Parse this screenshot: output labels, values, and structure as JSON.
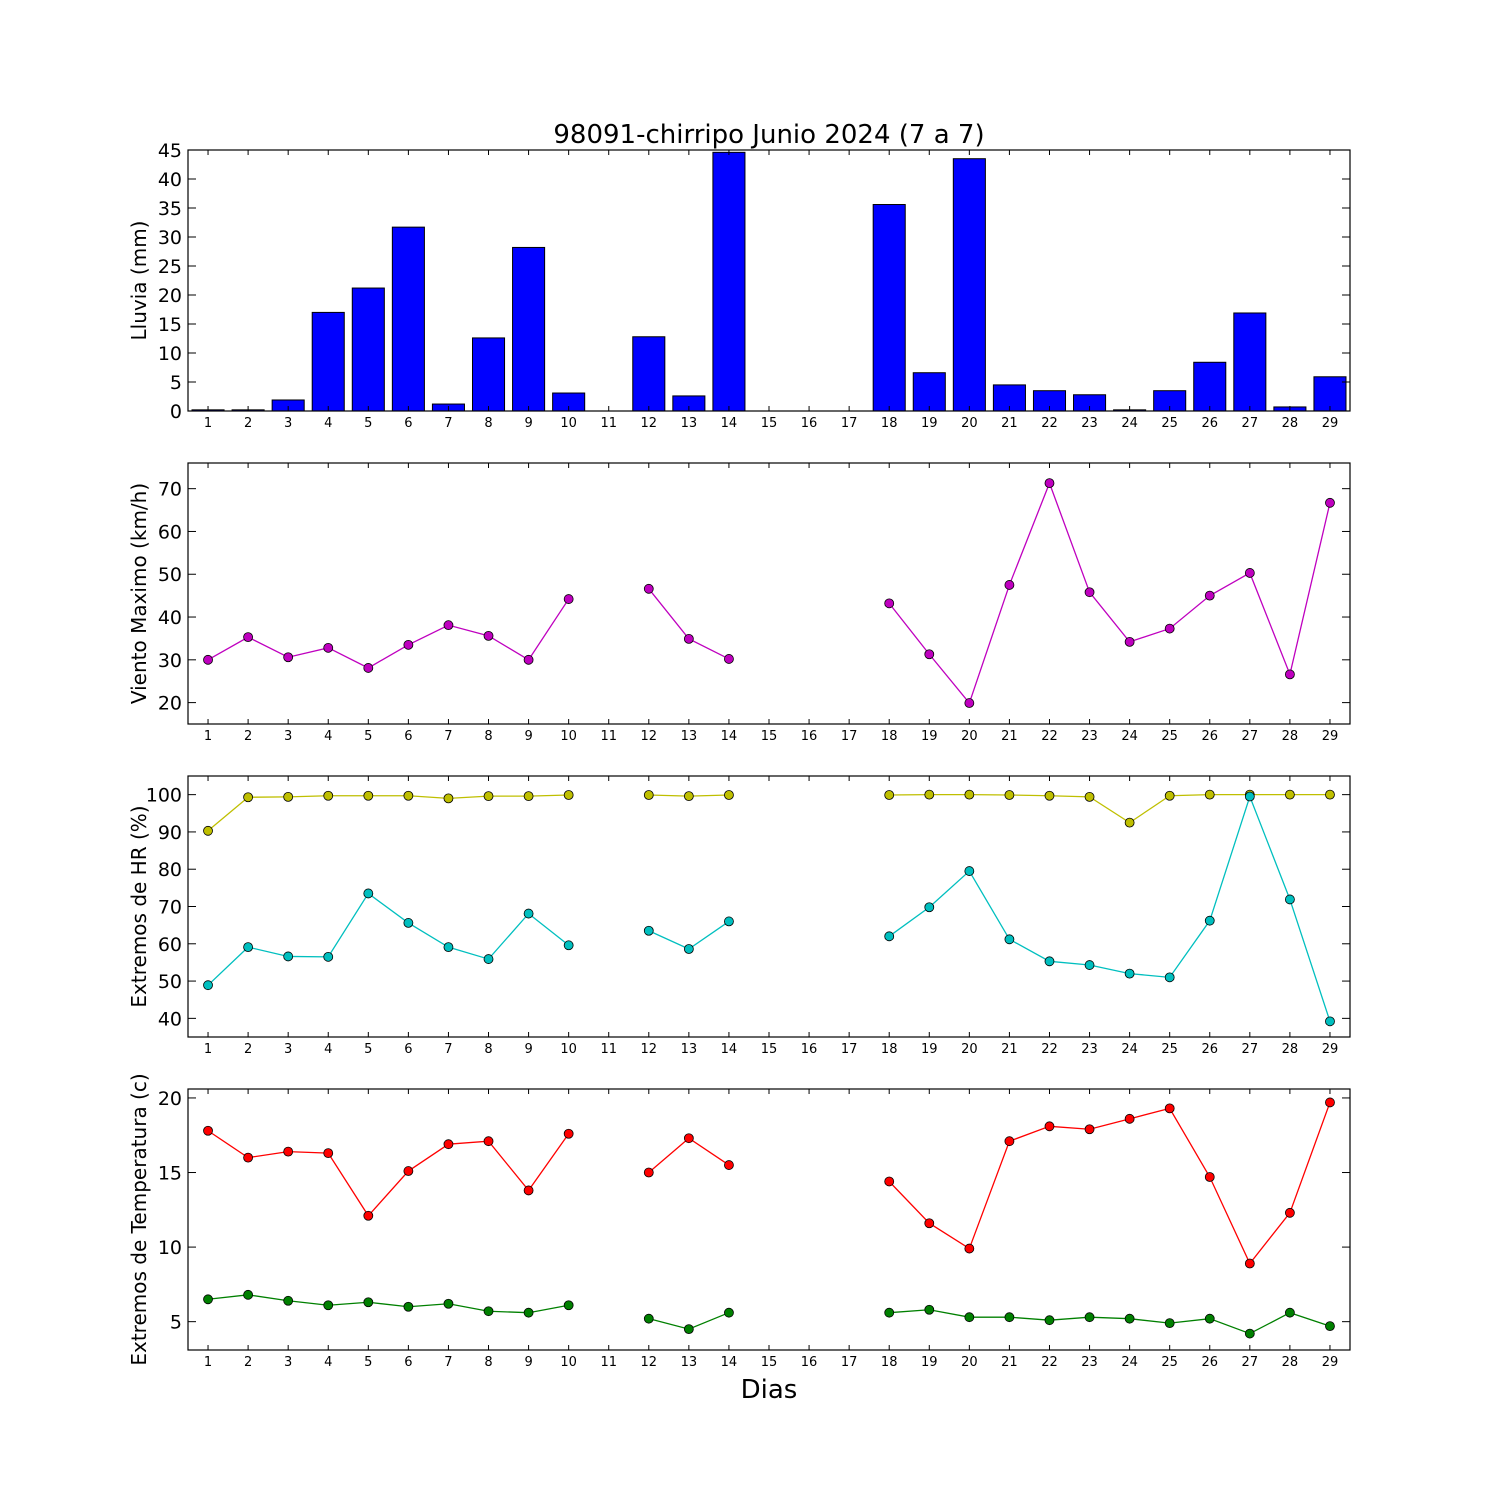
{
  "title": "98091-chirripo Junio 2024  (7 a 7)",
  "xlabel": "Dias",
  "chart_data": [
    {
      "type": "bar",
      "title": "98091-chirripo Junio 2024  (7 a 7)",
      "xlabel": "",
      "ylabel": "Lluvia (mm)",
      "ylim": [
        0,
        45
      ],
      "yticks": [
        0,
        5,
        10,
        15,
        20,
        25,
        30,
        35,
        40,
        45
      ],
      "x": [
        1,
        2,
        3,
        4,
        5,
        6,
        7,
        8,
        9,
        10,
        11,
        12,
        13,
        14,
        15,
        16,
        17,
        18,
        19,
        20,
        21,
        22,
        23,
        24,
        25,
        26,
        27,
        28,
        29
      ],
      "series": [
        {
          "color": "#0000ff",
          "values": [
            0.2,
            0.2,
            1.9,
            17.0,
            21.2,
            31.7,
            1.2,
            12.6,
            28.2,
            3.1,
            null,
            12.8,
            2.6,
            44.6,
            null,
            null,
            null,
            35.6,
            6.6,
            43.5,
            4.5,
            3.5,
            2.8,
            0.2,
            3.5,
            8.4,
            16.9,
            0.7,
            5.9
          ]
        }
      ]
    },
    {
      "type": "line",
      "ylabel": "Viento Maximo (km/h)",
      "ylim": [
        15,
        76
      ],
      "yticks": [
        20,
        30,
        40,
        50,
        60,
        70
      ],
      "x": [
        1,
        2,
        3,
        4,
        5,
        6,
        7,
        8,
        9,
        10,
        11,
        12,
        13,
        14,
        15,
        16,
        17,
        18,
        19,
        20,
        21,
        22,
        23,
        24,
        25,
        26,
        27,
        28,
        29
      ],
      "series": [
        {
          "color": "#bf00bf",
          "values": [
            30.0,
            35.3,
            30.6,
            32.8,
            28.1,
            33.5,
            38.1,
            35.6,
            30.0,
            44.2,
            null,
            46.6,
            34.9,
            30.2,
            null,
            null,
            null,
            43.2,
            31.3,
            19.9,
            47.5,
            71.3,
            45.8,
            34.2,
            37.3,
            45.0,
            50.3,
            26.6,
            66.7
          ]
        }
      ]
    },
    {
      "type": "line",
      "ylabel": "Extremos de HR (%)",
      "ylim": [
        35,
        105
      ],
      "yticks": [
        40,
        50,
        60,
        70,
        80,
        90,
        100
      ],
      "x": [
        1,
        2,
        3,
        4,
        5,
        6,
        7,
        8,
        9,
        10,
        11,
        12,
        13,
        14,
        15,
        16,
        17,
        18,
        19,
        20,
        21,
        22,
        23,
        24,
        25,
        26,
        27,
        28,
        29
      ],
      "series": [
        {
          "color": "#bfbf00",
          "values": [
            90.3,
            99.3,
            99.4,
            99.7,
            99.7,
            99.7,
            99.0,
            99.6,
            99.6,
            99.9,
            null,
            99.9,
            99.6,
            99.9,
            null,
            null,
            null,
            99.9,
            100.0,
            100.0,
            99.9,
            99.7,
            99.4,
            92.5,
            99.7,
            100.0,
            100.0,
            100.0,
            100.0
          ]
        },
        {
          "color": "#00bfbf",
          "values": [
            48.9,
            59.1,
            56.6,
            56.5,
            73.5,
            65.6,
            59.1,
            55.9,
            68.1,
            59.6,
            null,
            63.5,
            58.6,
            66.0,
            null,
            null,
            null,
            62.0,
            69.8,
            79.5,
            61.2,
            55.3,
            54.3,
            52.0,
            51.0,
            66.2,
            99.5,
            71.9,
            39.2
          ]
        }
      ]
    },
    {
      "type": "line",
      "ylabel": "Extremos de Temperatura (c)",
      "ylim": [
        3.1,
        20.6
      ],
      "yticks": [
        5,
        10,
        15,
        20
      ],
      "x": [
        1,
        2,
        3,
        4,
        5,
        6,
        7,
        8,
        9,
        10,
        11,
        12,
        13,
        14,
        15,
        16,
        17,
        18,
        19,
        20,
        21,
        22,
        23,
        24,
        25,
        26,
        27,
        28,
        29
      ],
      "series": [
        {
          "color": "#ff0000",
          "values": [
            17.8,
            16.0,
            16.4,
            16.3,
            12.1,
            15.1,
            16.9,
            17.1,
            13.8,
            17.6,
            null,
            15.0,
            17.3,
            15.5,
            null,
            null,
            null,
            14.4,
            11.6,
            9.9,
            17.1,
            18.1,
            17.9,
            18.6,
            19.3,
            14.7,
            8.9,
            12.3,
            19.7
          ]
        },
        {
          "color": "#008000",
          "values": [
            6.5,
            6.8,
            6.4,
            6.1,
            6.3,
            6.0,
            6.2,
            5.7,
            5.6,
            6.1,
            null,
            5.2,
            4.5,
            5.6,
            null,
            null,
            null,
            5.6,
            5.8,
            5.3,
            5.3,
            5.1,
            5.3,
            5.2,
            4.9,
            5.2,
            4.2,
            5.6,
            4.7
          ]
        }
      ]
    }
  ]
}
